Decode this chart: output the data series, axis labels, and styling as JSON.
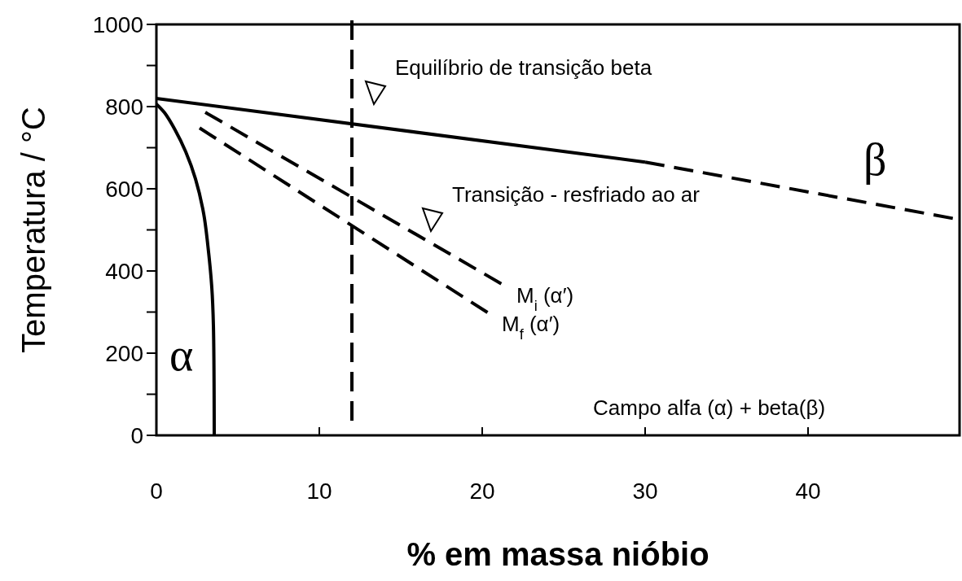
{
  "chart_data": {
    "type": "line",
    "xlabel": "% em massa nióbio",
    "ylabel": "Temperatura / °C",
    "xlim": [
      0,
      49.3
    ],
    "ylim": [
      0,
      1000
    ],
    "xticks": [
      0,
      10,
      20,
      30,
      40
    ],
    "yticks": [
      0,
      {
        "value": 100,
        "label": null
      },
      200,
      {
        "value": 300,
        "label": null
      },
      400,
      {
        "value": 500,
        "label": null
      },
      600,
      {
        "value": 700,
        "label": null
      },
      800,
      {
        "value": 900,
        "label": null
      },
      1000
    ],
    "series": [
      {
        "color": "#000000",
        "line_style": "solid",
        "x": [
          0,
          30
        ],
        "values": [
          820,
          665
        ]
      },
      {
        "color": "#000000",
        "line_style": "dashed",
        "x": [
          30,
          49.3
        ],
        "values": [
          665,
          525
        ]
      },
      {
        "color": "#000000",
        "line_style": "solid",
        "x": [
          0,
          0.5,
          1.15,
          1.8,
          2.4,
          2.9,
          3.15,
          3.4,
          3.5,
          3.55
        ],
        "values": [
          806,
          785,
          743,
          690,
          624,
          540,
          465,
          360,
          267,
          0
        ]
      },
      {
        "name": "M$_{i}$ (α′)",
        "color": "#000000",
        "line_style": "dashed",
        "x": [
          3,
          21.3
        ],
        "values": [
          786,
          366
        ]
      },
      {
        "name": "M$_{f}$ (α′)",
        "color": "#000000",
        "line_style": "dashed",
        "x": [
          2.65,
          20.4
        ],
        "values": [
          748,
          297
        ]
      }
    ],
    "ref_lines": [
      {
        "axis": "x",
        "value": 12,
        "color": "#000000",
        "line_style": "dashed"
      }
    ],
    "annotations": [
      "Equilíbrio de transição beta",
      "Transição - resfriado ao ar",
      "α",
      "β",
      "Campo alfa (α) + beta(β)"
    ]
  }
}
